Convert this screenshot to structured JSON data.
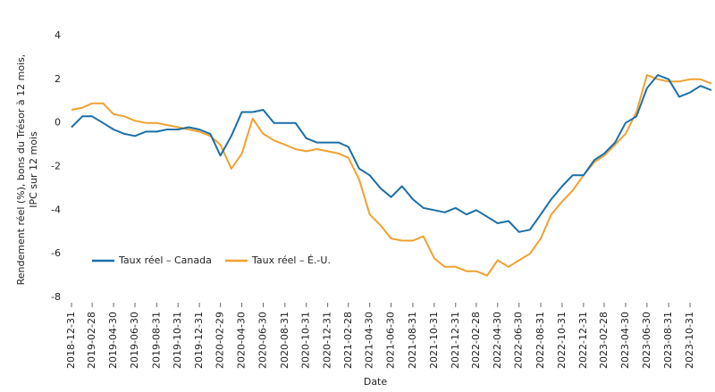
{
  "chart_data": {
    "type": "line",
    "xlabel": "Date",
    "ylabel": [
      "Rendement réel (%), bons du Trésor à 12 mois,",
      "IPC sur 12 mois"
    ],
    "x": [
      "2018-12-31",
      "2019-01-31",
      "2019-02-28",
      "2019-03-31",
      "2019-04-30",
      "2019-05-31",
      "2019-06-30",
      "2019-07-31",
      "2019-08-31",
      "2019-09-30",
      "2019-10-31",
      "2019-11-30",
      "2019-12-31",
      "2020-01-31",
      "2020-02-29",
      "2020-03-31",
      "2020-04-30",
      "2020-05-31",
      "2020-06-30",
      "2020-07-31",
      "2020-08-31",
      "2020-09-30",
      "2020-10-31",
      "2020-11-30",
      "2020-12-31",
      "2021-01-31",
      "2021-02-28",
      "2021-03-31",
      "2021-04-30",
      "2021-05-31",
      "2021-06-30",
      "2021-07-31",
      "2021-08-31",
      "2021-09-30",
      "2021-10-31",
      "2021-11-30",
      "2021-12-31",
      "2022-01-31",
      "2022-02-28",
      "2022-03-31",
      "2022-04-30",
      "2022-05-31",
      "2022-06-30",
      "2022-07-31",
      "2022-08-31",
      "2022-09-30",
      "2022-10-31",
      "2022-11-30",
      "2022-12-31",
      "2023-01-31",
      "2023-02-28",
      "2023-03-31",
      "2023-04-30",
      "2023-05-31",
      "2023-06-30",
      "2023-07-31",
      "2023-08-31",
      "2023-09-30",
      "2023-10-31",
      "2023-11-30",
      "2023-12-31"
    ],
    "series": [
      {
        "name": "Taux réel – Canada",
        "color": "#1a6fa9",
        "values": [
          -0.2,
          0.3,
          0.3,
          0.0,
          -0.3,
          -0.5,
          -0.6,
          -0.4,
          -0.4,
          -0.3,
          -0.3,
          -0.2,
          -0.3,
          -0.5,
          -1.5,
          -0.6,
          0.5,
          0.5,
          0.6,
          0.0,
          0.0,
          0.0,
          -0.7,
          -0.9,
          -0.9,
          -0.9,
          -1.1,
          -2.1,
          -2.4,
          -3.0,
          -3.4,
          -2.9,
          -3.5,
          -3.9,
          -4.0,
          -4.1,
          -3.9,
          -4.2,
          -4.0,
          -4.3,
          -4.6,
          -4.5,
          -5.0,
          -4.9,
          -4.2,
          -3.5,
          -2.9,
          -2.4,
          -2.4,
          -1.7,
          -1.4,
          -0.9,
          0.0,
          0.3,
          1.6,
          2.2,
          2.0,
          1.2,
          1.4,
          1.7,
          1.5
        ]
      },
      {
        "name": "Taux réel – É.-U.",
        "color": "#f0a130",
        "values": [
          0.6,
          0.7,
          0.9,
          0.9,
          0.4,
          0.3,
          0.1,
          0.0,
          0.0,
          -0.1,
          -0.2,
          -0.3,
          -0.4,
          -0.6,
          -1.0,
          -2.1,
          -1.4,
          0.2,
          -0.5,
          -0.8,
          -1.0,
          -1.2,
          -1.3,
          -1.2,
          -1.3,
          -1.4,
          -1.6,
          -2.6,
          -4.2,
          -4.7,
          -5.3,
          -5.4,
          -5.4,
          -5.2,
          -6.2,
          -6.6,
          -6.6,
          -6.8,
          -6.8,
          -7.0,
          -6.3,
          -6.6,
          -6.3,
          -6.0,
          -5.3,
          -4.2,
          -3.6,
          -3.1,
          -2.4,
          -1.8,
          -1.5,
          -1.0,
          -0.5,
          0.5,
          2.2,
          2.0,
          1.9,
          1.9,
          2.0,
          2.0,
          1.8
        ]
      }
    ],
    "xlim": [
      "2018-12-31",
      "2023-12-31"
    ],
    "xticks": [
      "2018-12-31",
      "2019-02-28",
      "2019-04-30",
      "2019-06-30",
      "2019-08-31",
      "2019-10-31",
      "2019-12-31",
      "2020-02-29",
      "2020-04-30",
      "2020-06-30",
      "2020-08-31",
      "2020-10-31",
      "2020-12-31",
      "2021-02-28",
      "2021-04-30",
      "2021-06-30",
      "2021-08-31",
      "2021-10-31",
      "2021-12-31",
      "2022-02-28",
      "2022-04-30",
      "2022-06-30",
      "2022-08-31",
      "2022-10-31",
      "2022-12-31",
      "2023-02-28",
      "2023-04-30",
      "2023-06-30",
      "2023-08-31",
      "2023-10-31"
    ],
    "ylim": [
      -8,
      4
    ],
    "yticks": [
      4,
      2,
      0,
      -2,
      -4,
      -6,
      -8
    ],
    "grid": false,
    "legend": "lower-left"
  }
}
